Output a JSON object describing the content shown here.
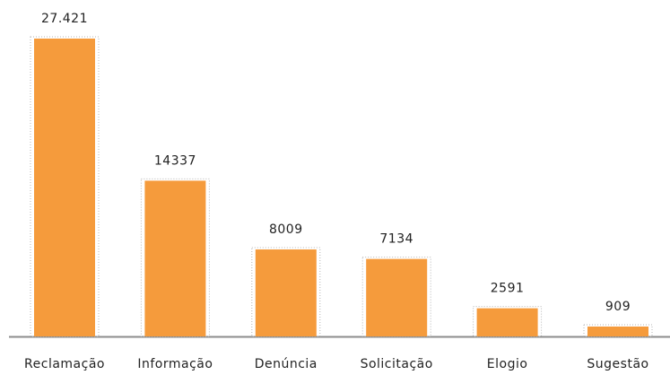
{
  "chart_data": {
    "type": "bar",
    "categories": [
      "Reclamação",
      "Informação",
      "Denúncia",
      "Solicitação",
      "Elogio",
      "Sugestão"
    ],
    "values": [
      27421,
      14337,
      8009,
      7134,
      2591,
      909
    ],
    "value_labels": [
      "27.421",
      "14337",
      "8009",
      "7134",
      "2591",
      "909"
    ],
    "color": "#f59b3c"
  }
}
